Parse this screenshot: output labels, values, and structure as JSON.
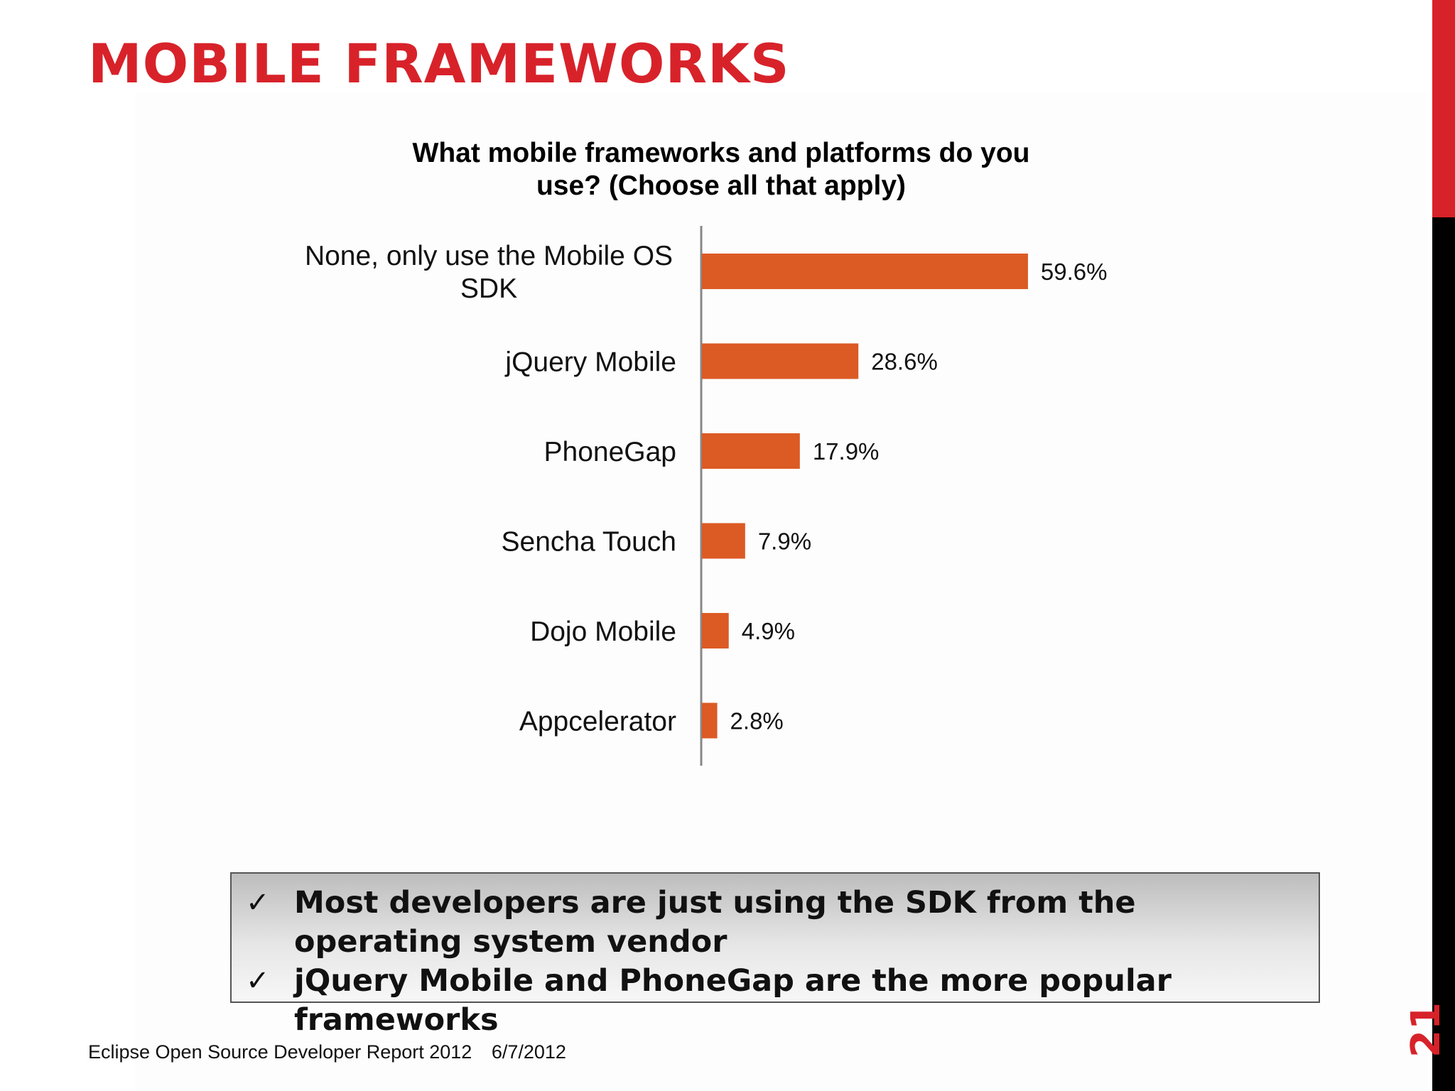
{
  "slide": {
    "title": "MOBILE FRAMEWORKS",
    "page_number": "21"
  },
  "chart_data": {
    "type": "bar",
    "orientation": "horizontal",
    "title": "What mobile frameworks and platforms do you use? (Choose all that apply)",
    "title_lines": [
      "What mobile frameworks and platforms do you",
      "use? (Choose all that apply)"
    ],
    "categories": [
      "None, only use the Mobile OS SDK",
      "jQuery Mobile",
      "PhoneGap",
      "Sencha Touch",
      "Dojo Mobile",
      "Appcelerator"
    ],
    "category_lines": [
      [
        "None, only use the Mobile OS",
        "SDK"
      ],
      [
        "jQuery Mobile"
      ],
      [
        "PhoneGap"
      ],
      [
        "Sencha Touch"
      ],
      [
        "Dojo Mobile"
      ],
      [
        "Appcelerator"
      ]
    ],
    "values": [
      59.6,
      28.6,
      17.9,
      7.9,
      4.9,
      2.8
    ],
    "value_labels": [
      "59.6%",
      "28.6%",
      "17.9%",
      "7.9%",
      "4.9%",
      "2.8%"
    ],
    "unit": "%",
    "xlim": [
      0,
      100
    ],
    "grid": false,
    "legend": "none",
    "bar_color": "#dc5a24"
  },
  "summary": {
    "items": [
      {
        "icon": "checkmark-icon",
        "glyph": "✓",
        "text": "Most developers are just using the SDK from the operating system vendor"
      },
      {
        "icon": "checkmark-icon",
        "glyph": "✓",
        "text": "jQuery Mobile and PhoneGap are the more popular frameworks"
      }
    ]
  },
  "footer": {
    "report": "Eclipse Open Source Developer Report 2012",
    "date": "6/7/2012"
  },
  "colors": {
    "accent": "#d8222a",
    "bar": "#dc5a24",
    "sidebar": "#000000"
  }
}
